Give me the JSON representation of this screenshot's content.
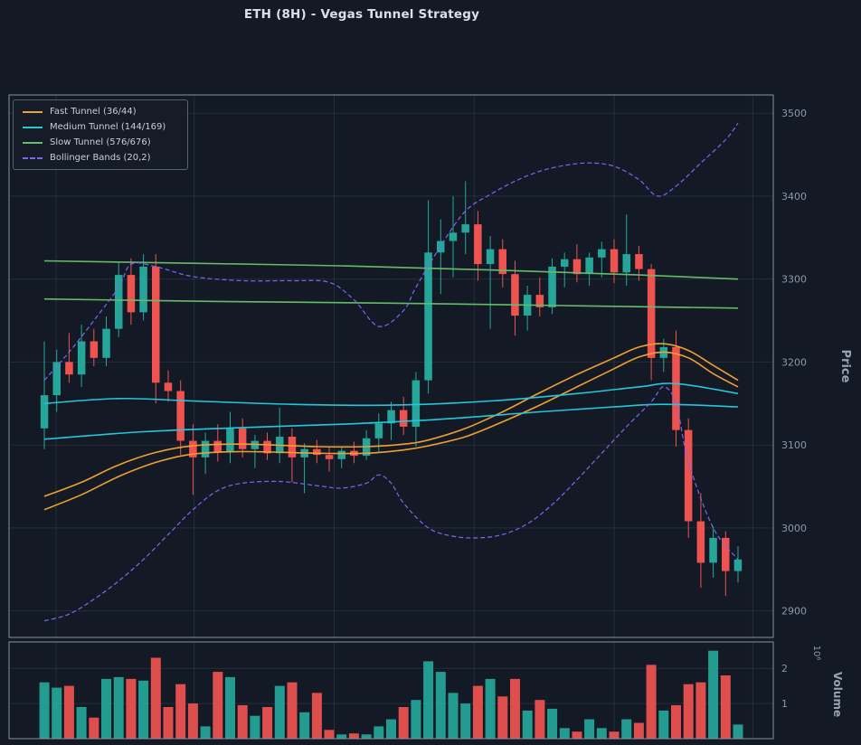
{
  "colors": {
    "background": "#131a26",
    "panel_border": "#8a919e",
    "grid": "rgba(150,160,180,0.14)",
    "up": "#26a69a",
    "down": "#ef5350",
    "tick_text": "#8f98a8",
    "axis_label": "#9aa3b2",
    "title_text": "#dbe0e8",
    "legend_text": "#c9ced8",
    "legend_bg": "rgba(21,28,40,0.95)",
    "legend_border": "#59616f"
  },
  "chart_data": {
    "type": "candlestick",
    "title": "ETH (8H) - Vegas Tunnel Strategy",
    "price_axis": {
      "label": "Price",
      "ticks": [
        2900,
        3000,
        3100,
        3200,
        3300,
        3400,
        3500
      ],
      "min": 2868,
      "max": 3522
    },
    "volume_axis": {
      "label": "Volume",
      "offset": "10⁶",
      "ticks": [
        1,
        2
      ],
      "max": 2.75
    },
    "legend": [
      {
        "label": "Fast Tunnel (36/44)",
        "color": "#f0a030",
        "dash": false
      },
      {
        "label": "Medium Tunnel (144/169)",
        "color": "#26c6da",
        "dash": false
      },
      {
        "label": "Slow Tunnel (576/676)",
        "color": "#66bb6a",
        "dash": false
      },
      {
        "label": "Bollinger Bands (20,2)",
        "color": "#7b68ee",
        "dash": true
      }
    ],
    "candles_format": [
      "open",
      "high",
      "low",
      "close",
      "volume_millions"
    ],
    "candles": [
      [
        3120,
        3225,
        3095,
        3160,
        1.6
      ],
      [
        3160,
        3215,
        3140,
        3200,
        1.45
      ],
      [
        3200,
        3235,
        3175,
        3185,
        1.5
      ],
      [
        3185,
        3245,
        3170,
        3225,
        0.9
      ],
      [
        3225,
        3240,
        3195,
        3205,
        0.6
      ],
      [
        3205,
        3255,
        3195,
        3240,
        1.7
      ],
      [
        3240,
        3320,
        3230,
        3305,
        1.75
      ],
      [
        3305,
        3325,
        3245,
        3260,
        1.7
      ],
      [
        3260,
        3330,
        3250,
        3315,
        1.65
      ],
      [
        3315,
        3330,
        3150,
        3175,
        2.3
      ],
      [
        3175,
        3190,
        3152,
        3165,
        0.9
      ],
      [
        3165,
        3178,
        3088,
        3105,
        1.55
      ],
      [
        3105,
        3125,
        3040,
        3085,
        1.0
      ],
      [
        3085,
        3115,
        3065,
        3105,
        0.35
      ],
      [
        3105,
        3125,
        3080,
        3092,
        1.9
      ],
      [
        3092,
        3140,
        3078,
        3120,
        1.75
      ],
      [
        3120,
        3132,
        3085,
        3095,
        0.95
      ],
      [
        3095,
        3112,
        3072,
        3105,
        0.65
      ],
      [
        3105,
        3115,
        3082,
        3090,
        0.9
      ],
      [
        3090,
        3145,
        3078,
        3110,
        1.5
      ],
      [
        3110,
        3120,
        3055,
        3085,
        1.6
      ],
      [
        3085,
        3102,
        3042,
        3095,
        0.75
      ],
      [
        3095,
        3106,
        3078,
        3088,
        1.3
      ],
      [
        3088,
        3098,
        3068,
        3083,
        0.25
      ],
      [
        3083,
        3098,
        3072,
        3093,
        0.12
      ],
      [
        3093,
        3104,
        3078,
        3087,
        0.15
      ],
      [
        3087,
        3118,
        3082,
        3108,
        0.12
      ],
      [
        3108,
        3138,
        3092,
        3126,
        0.35
      ],
      [
        3126,
        3152,
        3106,
        3142,
        0.55
      ],
      [
        3142,
        3158,
        3112,
        3122,
        0.9
      ],
      [
        3122,
        3188,
        3098,
        3178,
        1.1
      ],
      [
        3178,
        3395,
        3162,
        3332,
        2.2
      ],
      [
        3332,
        3372,
        3282,
        3346,
        1.9
      ],
      [
        3346,
        3400,
        3302,
        3356,
        1.3
      ],
      [
        3356,
        3418,
        3330,
        3366,
        1.0
      ],
      [
        3366,
        3382,
        3298,
        3318,
        1.5
      ],
      [
        3318,
        3352,
        3240,
        3336,
        1.7
      ],
      [
        3336,
        3348,
        3290,
        3306,
        1.2
      ],
      [
        3306,
        3322,
        3232,
        3256,
        1.7
      ],
      [
        3256,
        3292,
        3238,
        3281,
        0.8
      ],
      [
        3281,
        3302,
        3255,
        3266,
        1.1
      ],
      [
        3266,
        3325,
        3258,
        3315,
        0.85
      ],
      [
        3315,
        3332,
        3290,
        3324,
        0.3
      ],
      [
        3324,
        3342,
        3296,
        3306,
        0.2
      ],
      [
        3306,
        3332,
        3292,
        3326,
        0.55
      ],
      [
        3326,
        3345,
        3302,
        3336,
        0.3
      ],
      [
        3336,
        3348,
        3295,
        3308,
        0.2
      ],
      [
        3308,
        3378,
        3292,
        3330,
        0.55
      ],
      [
        3330,
        3340,
        3298,
        3312,
        0.45
      ],
      [
        3312,
        3318,
        3178,
        3205,
        2.1
      ],
      [
        3205,
        3228,
        3188,
        3218,
        0.8
      ],
      [
        3218,
        3238,
        3098,
        3118,
        0.95
      ],
      [
        3118,
        3132,
        2988,
        3008,
        1.55
      ],
      [
        3008,
        3042,
        2928,
        2958,
        1.6
      ],
      [
        2958,
        3002,
        2940,
        2988,
        2.5
      ],
      [
        2988,
        2996,
        2918,
        2948,
        1.8
      ],
      [
        2948,
        2978,
        2934,
        2962,
        0.4
      ]
    ],
    "overlays": [
      {
        "name": "fast-tunnel-upper",
        "color": "#f0a030",
        "dash": null,
        "points": [
          [
            0,
            3038
          ],
          [
            3,
            3055
          ],
          [
            6,
            3076
          ],
          [
            9,
            3091
          ],
          [
            12,
            3099
          ],
          [
            16,
            3101
          ],
          [
            22,
            3098
          ],
          [
            26,
            3098
          ],
          [
            29,
            3101
          ],
          [
            31,
            3106
          ],
          [
            34,
            3120
          ],
          [
            37,
            3140
          ],
          [
            40,
            3163
          ],
          [
            43,
            3185
          ],
          [
            46,
            3205
          ],
          [
            48,
            3218
          ],
          [
            50,
            3222
          ],
          [
            52,
            3214
          ],
          [
            54,
            3196
          ],
          [
            56,
            3178
          ]
        ]
      },
      {
        "name": "fast-tunnel-lower",
        "color": "#f0a030",
        "dash": null,
        "points": [
          [
            0,
            3022
          ],
          [
            3,
            3040
          ],
          [
            6,
            3062
          ],
          [
            9,
            3079
          ],
          [
            12,
            3089
          ],
          [
            16,
            3092
          ],
          [
            22,
            3090
          ],
          [
            26,
            3090
          ],
          [
            29,
            3094
          ],
          [
            31,
            3099
          ],
          [
            34,
            3110
          ],
          [
            37,
            3128
          ],
          [
            40,
            3148
          ],
          [
            43,
            3170
          ],
          [
            46,
            3192
          ],
          [
            48,
            3206
          ],
          [
            50,
            3212
          ],
          [
            52,
            3205
          ],
          [
            54,
            3186
          ],
          [
            56,
            3170
          ]
        ]
      },
      {
        "name": "medium-tunnel-upper",
        "color": "#26c6da",
        "dash": null,
        "points": [
          [
            0,
            3150
          ],
          [
            6,
            3156
          ],
          [
            12,
            3153
          ],
          [
            20,
            3149
          ],
          [
            28,
            3148
          ],
          [
            36,
            3153
          ],
          [
            43,
            3162
          ],
          [
            48,
            3170
          ],
          [
            51,
            3174
          ],
          [
            56,
            3162
          ]
        ]
      },
      {
        "name": "medium-tunnel-lower",
        "color": "#26c6da",
        "dash": null,
        "points": [
          [
            0,
            3107
          ],
          [
            8,
            3116
          ],
          [
            16,
            3121
          ],
          [
            24,
            3125
          ],
          [
            32,
            3131
          ],
          [
            40,
            3140
          ],
          [
            46,
            3146
          ],
          [
            50,
            3149
          ],
          [
            56,
            3146
          ]
        ]
      },
      {
        "name": "slow-tunnel-upper",
        "color": "#66bb6a",
        "dash": null,
        "points": [
          [
            0,
            3322
          ],
          [
            12,
            3319
          ],
          [
            24,
            3316
          ],
          [
            36,
            3311
          ],
          [
            48,
            3305
          ],
          [
            56,
            3300
          ]
        ]
      },
      {
        "name": "slow-tunnel-lower",
        "color": "#66bb6a",
        "dash": null,
        "points": [
          [
            0,
            3276
          ],
          [
            14,
            3273
          ],
          [
            28,
            3271
          ],
          [
            42,
            3268
          ],
          [
            56,
            3265
          ]
        ]
      },
      {
        "name": "bollinger-upper",
        "color": "#7b68ee",
        "dash": [
          5,
          3
        ],
        "points": [
          [
            0,
            3178
          ],
          [
            2,
            3212
          ],
          [
            4,
            3250
          ],
          [
            6,
            3290
          ],
          [
            7,
            3318
          ],
          [
            9,
            3315
          ],
          [
            12,
            3303
          ],
          [
            16,
            3298
          ],
          [
            20,
            3298
          ],
          [
            23,
            3296
          ],
          [
            25,
            3275
          ],
          [
            27,
            3243
          ],
          [
            29,
            3262
          ],
          [
            30,
            3290
          ],
          [
            32,
            3340
          ],
          [
            34,
            3382
          ],
          [
            36,
            3402
          ],
          [
            38,
            3418
          ],
          [
            40,
            3430
          ],
          [
            42,
            3437
          ],
          [
            44,
            3440
          ],
          [
            46,
            3436
          ],
          [
            48,
            3420
          ],
          [
            49.5,
            3400
          ],
          [
            51,
            3412
          ],
          [
            53,
            3440
          ],
          [
            55,
            3468
          ],
          [
            56,
            3488
          ]
        ]
      },
      {
        "name": "bollinger-lower",
        "color": "#7b68ee",
        "dash": [
          5,
          3
        ],
        "points": [
          [
            0,
            2888
          ],
          [
            2,
            2896
          ],
          [
            4,
            2914
          ],
          [
            6,
            2936
          ],
          [
            8,
            2962
          ],
          [
            10,
            2992
          ],
          [
            12,
            3022
          ],
          [
            14,
            3045
          ],
          [
            16,
            3054
          ],
          [
            19,
            3056
          ],
          [
            22,
            3051
          ],
          [
            24,
            3048
          ],
          [
            26,
            3054
          ],
          [
            27,
            3064
          ],
          [
            28,
            3054
          ],
          [
            29,
            3030
          ],
          [
            31,
            3000
          ],
          [
            33,
            2990
          ],
          [
            35,
            2988
          ],
          [
            37,
            2992
          ],
          [
            39,
            3005
          ],
          [
            41,
            3028
          ],
          [
            43,
            3058
          ],
          [
            45,
            3090
          ],
          [
            47,
            3122
          ],
          [
            49,
            3152
          ],
          [
            50,
            3170
          ],
          [
            51,
            3150
          ],
          [
            52,
            3080
          ],
          [
            54,
            3000
          ],
          [
            56,
            2962
          ]
        ]
      }
    ]
  }
}
